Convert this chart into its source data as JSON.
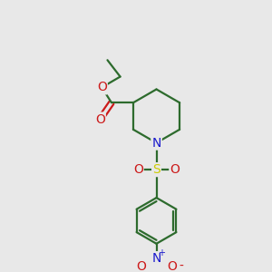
{
  "bg_color": "#e8e8e8",
  "bond_color": "#2d6b2d",
  "n_color": "#1a1acc",
  "o_color": "#cc1a1a",
  "s_color": "#cccc00",
  "line_width": 1.6,
  "fig_size": [
    3.0,
    3.0
  ],
  "dpi": 100,
  "xlim": [
    0,
    10
  ],
  "ylim": [
    0,
    10
  ]
}
